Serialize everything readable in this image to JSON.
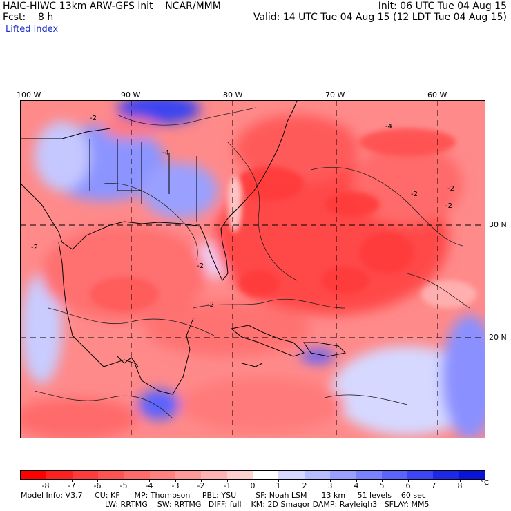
{
  "header": {
    "title": "HAIC-HIWC 13km ARW-GFS init    NCAR/MMM",
    "fcst": "Fcst:    8 h",
    "field": "Lifted index",
    "init": "Init: 06 UTC Tue 04 Aug 15",
    "valid": "Valid: 14 UTC Tue 04 Aug 15 (12 LDT Tue 04 Aug 15)"
  },
  "map": {
    "lon_labels": [
      "100 W",
      "90 W",
      "80 W",
      "70 W",
      "60 W"
    ],
    "lat_labels": [
      "30 N",
      "20 N"
    ],
    "contour_labels": [
      "-2",
      "-4",
      "-2",
      "-2",
      "-4",
      "-2",
      "-2",
      "-2",
      "-2"
    ]
  },
  "colorbar": {
    "labels": [
      "-8",
      "-7",
      "-6",
      "-5",
      "-4",
      "-3",
      "-2",
      "-1",
      "0",
      "1",
      "2",
      "3",
      "4",
      "5",
      "6",
      "7",
      "8"
    ],
    "unit": "°C",
    "colors": [
      "#ff0000",
      "#ff2020",
      "#ff3b3b",
      "#ff5252",
      "#ff6a6a",
      "#ff8080",
      "#ff9a9a",
      "#ffb4b4",
      "#ffd0d0",
      "#ffffff",
      "#d6d8ff",
      "#b8bcff",
      "#9aa0ff",
      "#7a82ff",
      "#5a64ff",
      "#3c46f6",
      "#2028e8",
      "#0a14d8"
    ]
  },
  "model_info": {
    "line1": "Model Info: V3.7     CU: KF      MP: Thompson     PBL: YSU        SF: Noah LSM      13 km     51 levels    60 sec",
    "line2": "LW: RRTMG    SW: RRTMG   DIFF: full    KM: 2D Smagor DAMP: Rayleigh3   SFLAY: MM5"
  }
}
